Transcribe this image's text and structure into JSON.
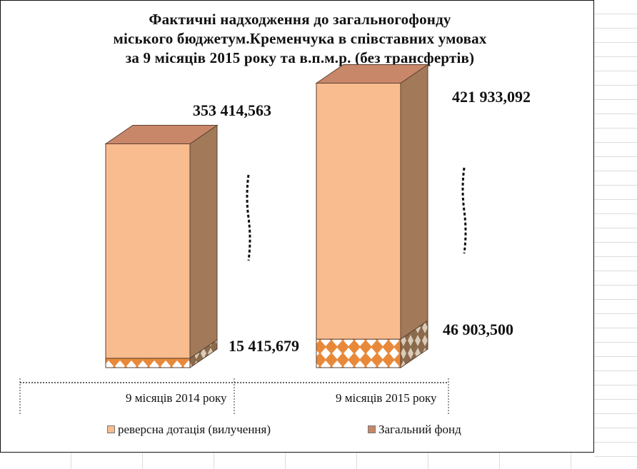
{
  "chart_data": {
    "type": "bar",
    "stacked": true,
    "title_lines": [
      "Фактичні надходження до загальногофонду",
      "міського бюджетум.Кременчука в співставних умовах",
      "за 9 місяців 2015 року та в.п.м.р.    (без трансфертів)"
    ],
    "categories": [
      "9 місяців  2014 року",
      "9 місяців  2015 року"
    ],
    "series": [
      {
        "name": "реверсна дотація (вилучення)",
        "values": [
          15415.679,
          46903.5
        ],
        "labels": [
          "15 415,679",
          "46 903,500"
        ]
      },
      {
        "name": "Загальний фонд",
        "values": [
          353414.563,
          421933.092
        ],
        "labels": [
          "353 414,563",
          "421 933,092"
        ]
      }
    ],
    "legend_position": "bottom",
    "grid": false
  },
  "colors": {
    "front": "#F9BC8F",
    "top": "#C9876A",
    "side": "#A27A59",
    "edge": "#5a4030",
    "diamond_fill": "#ffffff",
    "diamond_bg": "#E8893A"
  }
}
